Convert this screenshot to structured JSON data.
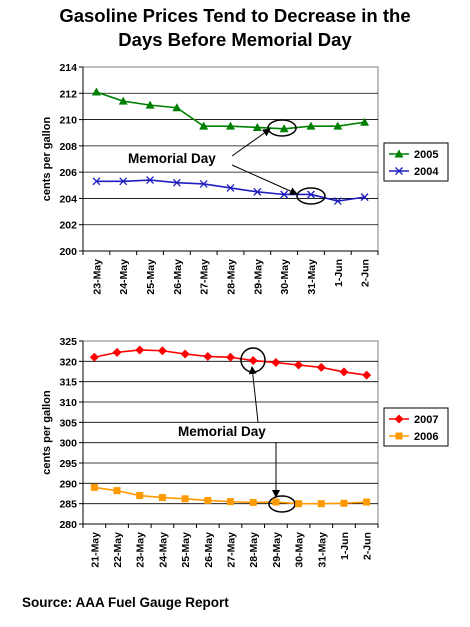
{
  "title_line1": "Gasoline Prices Tend to Decrease in the",
  "title_line2": "Days Before Memorial Day",
  "source": "Source: AAA Fuel Gauge Report",
  "chart_data": [
    {
      "type": "line",
      "ylabel": "cents per gallon",
      "ylim": [
        200,
        214
      ],
      "yticks": [
        200,
        202,
        204,
        206,
        208,
        210,
        212,
        214
      ],
      "categories": [
        "23-May",
        "24-May",
        "25-May",
        "26-May",
        "27-May",
        "28-May",
        "29-May",
        "30-May",
        "31-May",
        "1-Jun",
        "2-Jun"
      ],
      "series": [
        {
          "name": "2005",
          "color": "#008000",
          "marker": "triangle",
          "values": [
            212.1,
            211.4,
            211.1,
            210.9,
            209.5,
            209.5,
            209.4,
            209.3,
            209.5,
            209.5,
            209.8
          ]
        },
        {
          "name": "2004",
          "color": "#1f1fbf",
          "marker": "x",
          "values": [
            205.3,
            205.3,
            205.4,
            205.2,
            205.1,
            204.8,
            204.5,
            204.3,
            204.3,
            203.8,
            204.1
          ]
        }
      ],
      "annotation": "Memorial Day",
      "highlight_indices": [
        7,
        8
      ],
      "legend": "right",
      "grid": true
    },
    {
      "type": "line",
      "ylabel": "cents per gallon",
      "ylim": [
        280,
        325
      ],
      "yticks": [
        280,
        285,
        290,
        295,
        300,
        305,
        310,
        315,
        320,
        325
      ],
      "categories": [
        "21-May",
        "22-May",
        "23-May",
        "24-May",
        "25-May",
        "26-May",
        "27-May",
        "28-May",
        "29-May",
        "30-May",
        "31-May",
        "1-Jun",
        "2-Jun"
      ],
      "series": [
        {
          "name": "2007",
          "color": "#ff0000",
          "marker": "diamond",
          "values": [
            321.0,
            322.2,
            322.8,
            322.6,
            321.8,
            321.2,
            321.0,
            320.2,
            319.7,
            319.1,
            318.5,
            317.4,
            316.6
          ]
        },
        {
          "name": "2006",
          "color": "#ff9900",
          "marker": "square",
          "values": [
            289.0,
            288.2,
            287.0,
            286.5,
            286.2,
            285.8,
            285.5,
            285.3,
            285.4,
            285.0,
            285.0,
            285.1,
            285.4
          ]
        }
      ],
      "annotation": "Memorial Day",
      "highlight_indices": [
        7,
        8
      ],
      "legend": "right",
      "grid": true
    }
  ]
}
